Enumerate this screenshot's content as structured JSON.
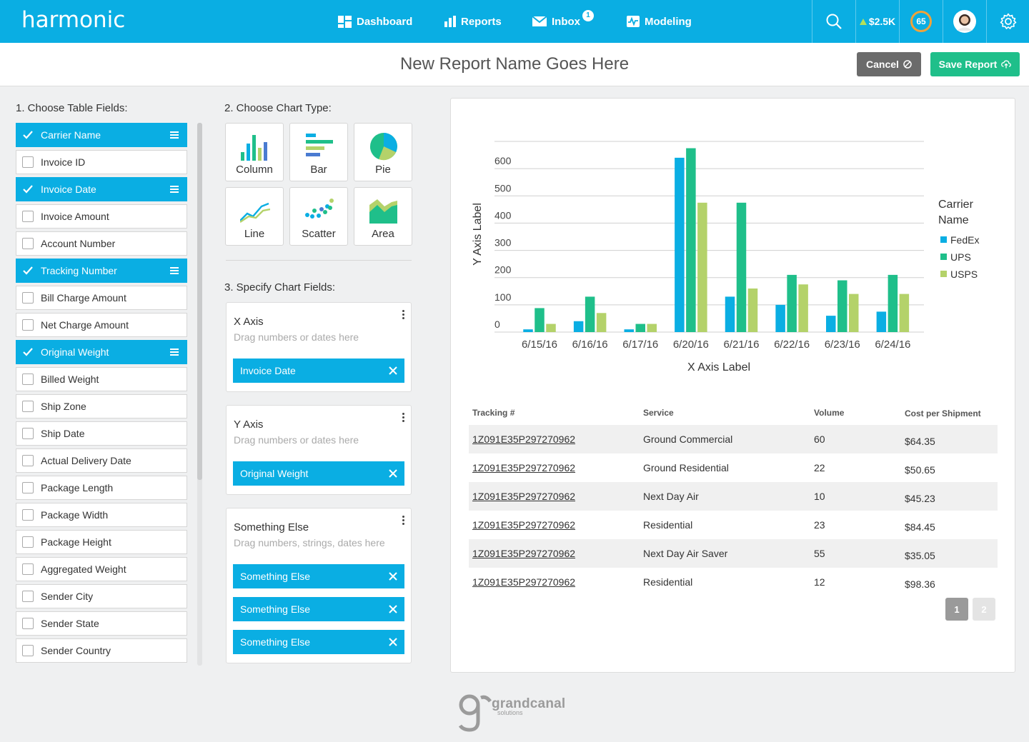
{
  "topbar": {
    "logo": "harmonic",
    "nav": [
      {
        "label": "Dashboard",
        "icon": "dashboard-icon"
      },
      {
        "label": "Reports",
        "icon": "reports-icon"
      },
      {
        "label": "Inbox",
        "icon": "inbox-icon",
        "badge": "1"
      },
      {
        "label": "Modeling",
        "icon": "modeling-icon"
      }
    ],
    "balance": "$2.5K",
    "score": "65"
  },
  "header": {
    "title": "New Report Name Goes Here",
    "cancel_label": "Cancel",
    "save_label": "Save Report"
  },
  "step1": {
    "title": "1. Choose Table Fields:",
    "fields": [
      {
        "label": "Carrier Name",
        "checked": true
      },
      {
        "label": "Invoice ID",
        "checked": false
      },
      {
        "label": "Invoice Date",
        "checked": true
      },
      {
        "label": "Invoice Amount",
        "checked": false
      },
      {
        "label": "Account Number",
        "checked": false
      },
      {
        "label": "Tracking Number",
        "checked": true
      },
      {
        "label": "Bill Charge Amount",
        "checked": false
      },
      {
        "label": "Net Charge Amount",
        "checked": false
      },
      {
        "label": "Original Weight",
        "checked": true
      },
      {
        "label": "Billed Weight",
        "checked": false
      },
      {
        "label": "Ship Zone",
        "checked": false
      },
      {
        "label": "Ship Date",
        "checked": false
      },
      {
        "label": "Actual Delivery Date",
        "checked": false
      },
      {
        "label": "Package Length",
        "checked": false
      },
      {
        "label": "Package Width",
        "checked": false
      },
      {
        "label": "Package Height",
        "checked": false
      },
      {
        "label": "Aggregated Weight",
        "checked": false
      },
      {
        "label": "Sender City",
        "checked": false
      },
      {
        "label": "Sender State",
        "checked": false
      },
      {
        "label": "Sender Country",
        "checked": false
      }
    ]
  },
  "step2": {
    "title": "2. Choose Chart Type:",
    "types": [
      "Column",
      "Bar",
      "Pie",
      "Line",
      "Scatter",
      "Area"
    ]
  },
  "step3": {
    "title": "3. Specify Chart Fields:",
    "x_axis": {
      "label": "X Axis",
      "hint": "Drag numbers or dates here",
      "chips": [
        "Invoice Date"
      ]
    },
    "y_axis": {
      "label": "Y Axis",
      "hint": "Drag numbers or dates here",
      "chips": [
        "Original Weight"
      ]
    },
    "other": {
      "label": "Something Else",
      "hint": "Drag numbers, strings, dates here",
      "chips": [
        "Something Else",
        "Something Else",
        "Something Else"
      ]
    }
  },
  "chart_data": {
    "type": "bar",
    "categories": [
      "6/15/16",
      "6/16/16",
      "6/17/16",
      "6/20/16",
      "6/21/16",
      "6/22/16",
      "6/23/16",
      "6/24/16"
    ],
    "series": [
      {
        "name": "FedEx",
        "color": "#0aaee3",
        "values": [
          10,
          40,
          10,
          640,
          130,
          100,
          60,
          75
        ]
      },
      {
        "name": "UPS",
        "color": "#1fbf8a",
        "values": [
          88,
          130,
          30,
          675,
          475,
          210,
          190,
          210
        ]
      },
      {
        "name": "USPS",
        "color": "#b4d26a",
        "values": [
          30,
          70,
          30,
          475,
          160,
          175,
          140,
          140
        ]
      }
    ],
    "xlabel": "X Axis Label",
    "ylabel": "Y Axis Label",
    "yticks": [
      0,
      100,
      200,
      300,
      400,
      500,
      600
    ],
    "ylim": [
      0,
      700
    ],
    "legend_title": "Carrier Name",
    "legend_position": "right",
    "grid": true
  },
  "table": {
    "headers": [
      "Tracking #",
      "Service",
      "Volume",
      "Cost per Shipment"
    ],
    "rows": [
      [
        "1Z091E35P297270962",
        "Ground Commercial",
        "60",
        "$64.35"
      ],
      [
        "1Z091E35P297270962",
        "Ground Residential",
        "22",
        "$50.65"
      ],
      [
        "1Z091E35P297270962",
        "Next Day Air",
        "10",
        "$45.23"
      ],
      [
        "1Z091E35P297270962",
        "Residential",
        "23",
        "$84.45"
      ],
      [
        "1Z091E35P297270962",
        "Next Day Air Saver",
        "55",
        "$35.05"
      ],
      [
        "1Z091E35P297270962",
        "Residential",
        "12",
        "$98.36"
      ]
    ],
    "pages": [
      "1",
      "2"
    ],
    "current_page": "1"
  },
  "footer": {
    "brand": "grandcanal",
    "brand_sub": "solutions"
  }
}
